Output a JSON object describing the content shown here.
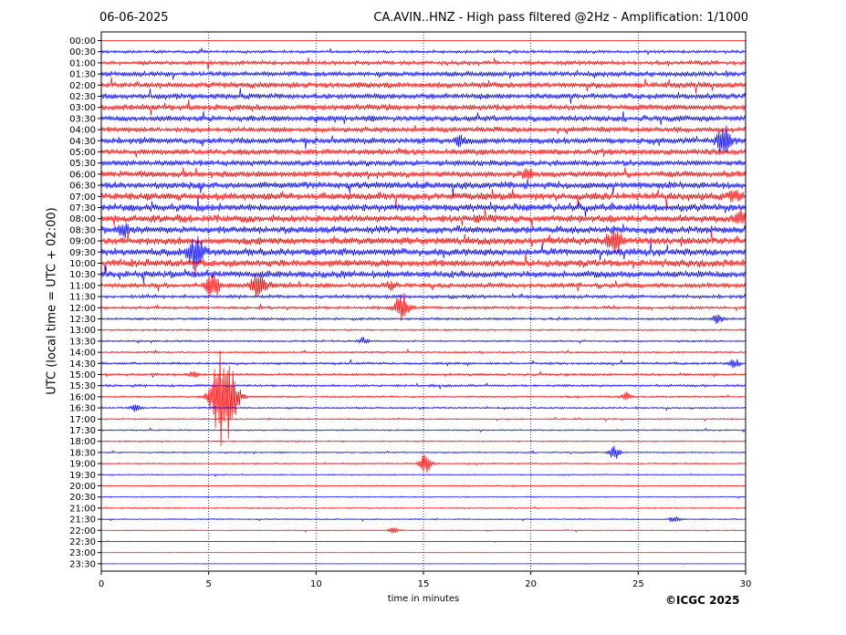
{
  "header": {
    "date": "06-06-2025",
    "title": "CA.AVIN..HNZ - High pass filtered @2Hz - Amplification: 1/1000"
  },
  "footer": {
    "credit": "©ICGC 2025"
  },
  "colors": {
    "trace_a": "#ff0000",
    "trace_b": "#0000ff",
    "grid": "#000080",
    "axis": "#000000"
  },
  "chart_data": {
    "type": "line",
    "chart_kind": "helicorder",
    "xlabel": "time in minutes",
    "ylabel": "UTC (local time = UTC + 02:00)",
    "xlim": [
      0,
      30
    ],
    "x_ticks": [
      0,
      5,
      10,
      15,
      20,
      25,
      30
    ],
    "grid": "vertical dotted at each x tick",
    "row_labels": [
      "00:00",
      "00:30",
      "01:00",
      "01:30",
      "02:00",
      "02:30",
      "03:00",
      "03:30",
      "04:00",
      "04:30",
      "05:00",
      "05:30",
      "06:00",
      "06:30",
      "07:00",
      "07:30",
      "08:00",
      "08:30",
      "09:00",
      "09:30",
      "10:00",
      "10:30",
      "11:00",
      "11:30",
      "12:00",
      "12:30",
      "13:00",
      "13:30",
      "14:00",
      "14:30",
      "15:00",
      "15:30",
      "16:00",
      "16:30",
      "17:00",
      "17:30",
      "18:00",
      "18:30",
      "19:00",
      "19:30",
      "20:00",
      "20:30",
      "21:00",
      "21:30",
      "22:00",
      "22:30",
      "23:00",
      "23:30"
    ],
    "row_color_pattern": [
      "trace_a",
      "trace_b"
    ],
    "noise_level_by_row": [
      0.0,
      0.25,
      0.35,
      0.45,
      0.5,
      0.5,
      0.5,
      0.5,
      0.45,
      0.55,
      0.5,
      0.5,
      0.55,
      0.6,
      0.65,
      0.65,
      0.65,
      0.65,
      0.65,
      0.65,
      0.65,
      0.6,
      0.4,
      0.3,
      0.25,
      0.2,
      0.15,
      0.15,
      0.15,
      0.2,
      0.2,
      0.2,
      0.15,
      0.15,
      0.12,
      0.12,
      0.12,
      0.12,
      0.12,
      0.1,
      0.1,
      0.1,
      0.1,
      0.1,
      0.08,
      0.05,
      0.03,
      0.02
    ],
    "events": [
      {
        "row": "04:30",
        "minute": 29.0,
        "amplitude_rows": 1.3
      },
      {
        "row": "04:30",
        "minute": 16.7,
        "amplitude_rows": 0.4
      },
      {
        "row": "06:00",
        "minute": 19.8,
        "amplitude_rows": 0.5
      },
      {
        "row": "07:00",
        "minute": 29.5,
        "amplitude_rows": 0.5
      },
      {
        "row": "08:00",
        "minute": 29.8,
        "amplitude_rows": 0.6
      },
      {
        "row": "08:30",
        "minute": 1.0,
        "amplitude_rows": 0.6
      },
      {
        "row": "09:00",
        "minute": 23.9,
        "amplitude_rows": 1.3
      },
      {
        "row": "09:30",
        "minute": 4.4,
        "amplitude_rows": 1.6
      },
      {
        "row": "11:00",
        "minute": 5.2,
        "amplitude_rows": 1.2
      },
      {
        "row": "11:00",
        "minute": 7.3,
        "amplitude_rows": 1.5
      },
      {
        "row": "11:00",
        "minute": 13.5,
        "amplitude_rows": 0.4
      },
      {
        "row": "12:00",
        "minute": 14.0,
        "amplitude_rows": 1.5
      },
      {
        "row": "12:30",
        "minute": 28.7,
        "amplitude_rows": 0.4
      },
      {
        "row": "13:30",
        "minute": 12.2,
        "amplitude_rows": 0.3
      },
      {
        "row": "14:30",
        "minute": 29.5,
        "amplitude_rows": 0.4
      },
      {
        "row": "15:00",
        "minute": 4.3,
        "amplitude_rows": 0.3
      },
      {
        "row": "16:00",
        "minute": 5.7,
        "amplitude_rows": 4.8
      },
      {
        "row": "16:00",
        "minute": 24.5,
        "amplitude_rows": 0.4
      },
      {
        "row": "16:30",
        "minute": 1.6,
        "amplitude_rows": 0.3
      },
      {
        "row": "18:30",
        "minute": 23.9,
        "amplitude_rows": 0.6
      },
      {
        "row": "19:00",
        "minute": 15.1,
        "amplitude_rows": 0.9
      },
      {
        "row": "21:30",
        "minute": 26.7,
        "amplitude_rows": 0.3
      },
      {
        "row": "22:00",
        "minute": 13.6,
        "amplitude_rows": 0.25
      }
    ]
  }
}
